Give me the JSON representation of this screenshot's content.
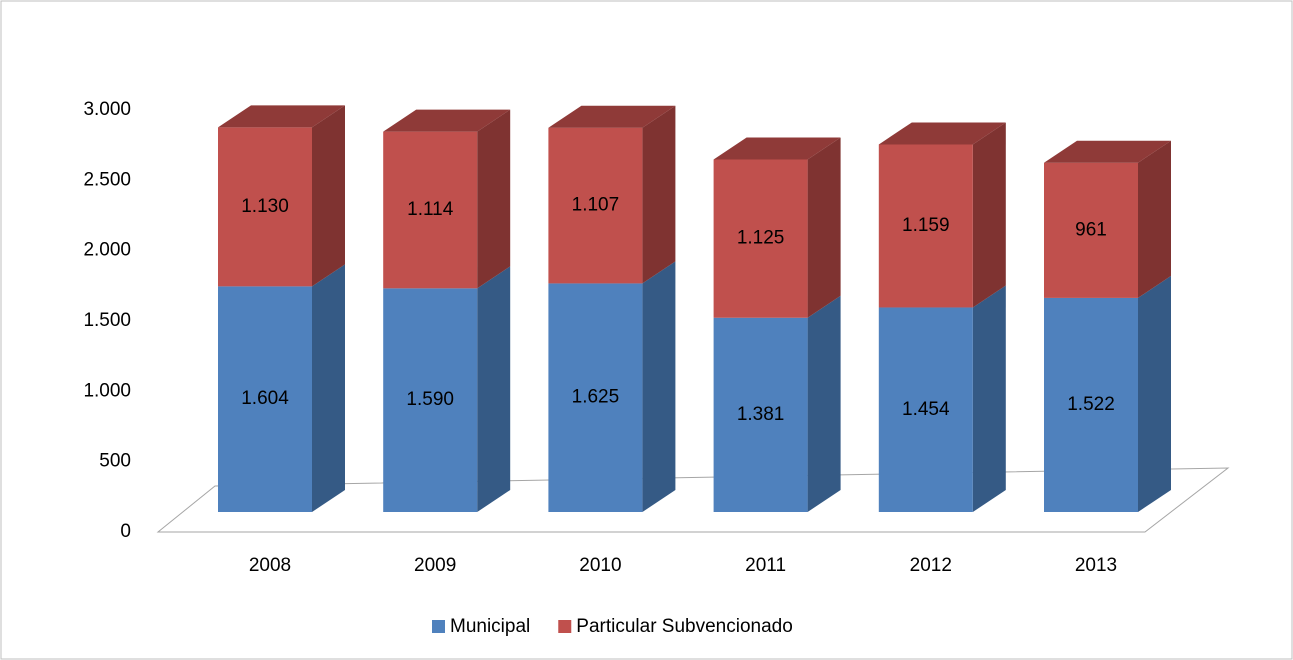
{
  "chart_data": {
    "type": "bar3d_stacked",
    "categories": [
      "2008",
      "2009",
      "2010",
      "2011",
      "2012",
      "2013"
    ],
    "series": [
      {
        "name": "Municipal",
        "color": "#4f81bd",
        "side_color": "#355a85",
        "top_color": "#3f6a9c",
        "values": [
          1604,
          1590,
          1625,
          1381,
          1454,
          1522
        ],
        "value_labels": [
          "1.604",
          "1.590",
          "1.625",
          "1.381",
          "1.454",
          "1.522"
        ]
      },
      {
        "name": "Particular Subvencionado",
        "color": "#c0504d",
        "side_color": "#7f3331",
        "top_color": "#8f3a38",
        "values": [
          1130,
          1114,
          1107,
          1125,
          1159,
          961
        ],
        "value_labels": [
          "1.130",
          "1.114",
          "1.107",
          "1.125",
          "1.159",
          "961"
        ]
      }
    ],
    "ylim": [
      0,
      3000
    ],
    "yticks": [
      0,
      500,
      {
        "value": 1000,
        "label": "1.000"
      },
      {
        "value": 1500,
        "label": "1.500"
      },
      {
        "value": 2000,
        "label": "2.000"
      },
      {
        "value": 2500,
        "label": "2.500"
      },
      {
        "value": 3000,
        "label": "3.000"
      }
    ],
    "legend": "bottom"
  }
}
